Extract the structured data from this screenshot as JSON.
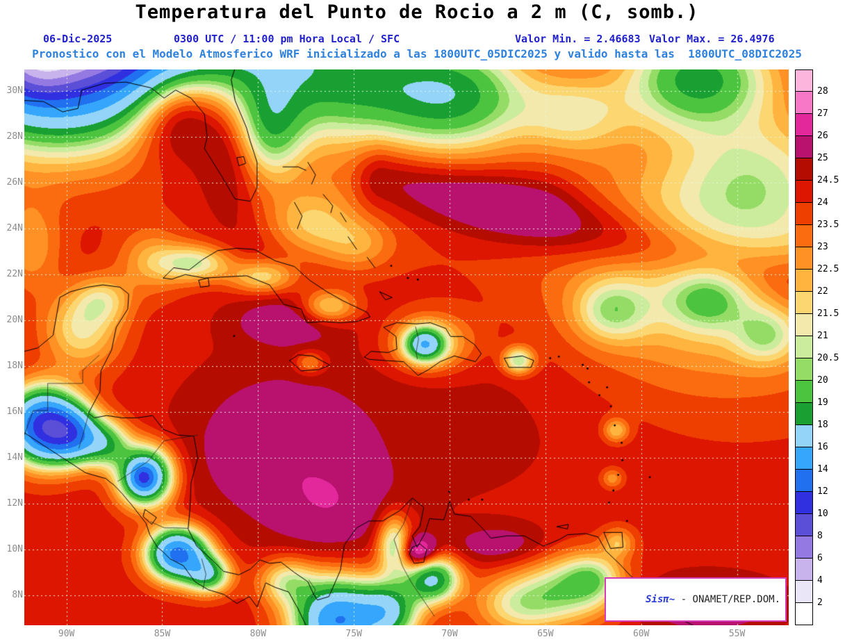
{
  "header": {
    "title": "Temperatura del Punto de Rocio a 2 m (C, somb.)",
    "date": "06-Dic-2025",
    "time_line": "0300 UTC / 11:00 pm Hora Local / SFC",
    "min_label": "Valor Min. = 2.46683",
    "max_label": "Valor Max. = 26.4976",
    "model_line": "Pronostico con el Modelo Atmosferico WRF inicializado a las 1800UTC_05DIC2025 y valido hasta las  1800UTC_08DIC2025"
  },
  "watermark": {
    "brand": "Sisπ~ ",
    "org": "- ONAMET/REP.DOM."
  },
  "axes": {
    "lat": [
      {
        "label": "30N",
        "value": 30
      },
      {
        "label": "28N",
        "value": 28
      },
      {
        "label": "26N",
        "value": 26
      },
      {
        "label": "24N",
        "value": 24
      },
      {
        "label": "22N",
        "value": 22
      },
      {
        "label": "20N",
        "value": 20
      },
      {
        "label": "18N",
        "value": 18
      },
      {
        "label": "16N",
        "value": 16
      },
      {
        "label": "14N",
        "value": 14
      },
      {
        "label": "12N",
        "value": 12
      },
      {
        "label": "10N",
        "value": 10
      },
      {
        "label": "8N",
        "value": 8
      }
    ],
    "lon": [
      {
        "label": "90W",
        "value": -90
      },
      {
        "label": "85W",
        "value": -85
      },
      {
        "label": "80W",
        "value": -80
      },
      {
        "label": "75W",
        "value": -75
      },
      {
        "label": "70W",
        "value": -70
      },
      {
        "label": "65W",
        "value": -65
      },
      {
        "label": "60W",
        "value": -60
      },
      {
        "label": "55W",
        "value": -55
      }
    ]
  },
  "colorbar": {
    "labels_top_to_bottom": [
      "28",
      "27",
      "26",
      "25",
      "24.5",
      "24",
      "23.5",
      "23",
      "22.5",
      "22",
      "21.5",
      "21",
      "20.5",
      "20",
      "19",
      "18",
      "16",
      "14",
      "12",
      "10",
      "8",
      "6",
      "4",
      "2"
    ]
  },
  "chart_data": {
    "type": "heatmap",
    "title": "Temperatura del Punto de Rocio a 2 m (C, somb.)",
    "units": "C",
    "value_min": 2.46683,
    "value_max": 26.4976,
    "extent": {
      "lon_min": -92.2,
      "lon_max": -52.3,
      "lat_min": 6.7,
      "lat_max": 30.95
    },
    "levels": [
      2,
      4,
      6,
      8,
      10,
      12,
      14,
      16,
      18,
      19,
      20,
      20.5,
      21,
      21.5,
      22,
      22.5,
      23,
      23.5,
      24,
      24.5,
      25,
      26,
      27,
      28
    ],
    "palette": [
      "#ffffff",
      "#eae6f8",
      "#c9b3ec",
      "#9579e2",
      "#5b4fd8",
      "#3030e0",
      "#2070f0",
      "#35a6fb",
      "#93d4f8",
      "#1aa032",
      "#4dc43f",
      "#95dc66",
      "#cbec9c",
      "#f3e9ac",
      "#fbd671",
      "#ffb440",
      "#ff9125",
      "#fb6c10",
      "#ee3e00",
      "#dc1600",
      "#b50c00",
      "#b8126e",
      "#e3289b",
      "#f878c8",
      "#fcb6dd"
    ],
    "base_value": 24.2,
    "features": [
      [
        -90.5,
        33.2,
        -24,
        4.0,
        2.9
      ],
      [
        -91.5,
        31.0,
        -2.5,
        1.2,
        0.9
      ],
      [
        -82.5,
        35.5,
        -15,
        4.5,
        2.8
      ],
      [
        -75.3,
        30.3,
        -4.8,
        3.8,
        1.7
      ],
      [
        -69.5,
        29.8,
        -4.5,
        2.6,
        1.6
      ],
      [
        -57.0,
        30.6,
        -5.5,
        2.6,
        1.5
      ],
      [
        -63.5,
        29.0,
        -2.5,
        2.0,
        1.2
      ],
      [
        -84.3,
        29.3,
        3.5,
        1.7,
        1.5
      ],
      [
        -81.6,
        27.3,
        1.2,
        1.1,
        1.9
      ],
      [
        -79.3,
        28.3,
        -3.5,
        1.2,
        1.5
      ],
      [
        -77.3,
        24.2,
        -2.2,
        1.6,
        1.0
      ],
      [
        -74.8,
        23.3,
        -1.5,
        1.3,
        0.8
      ],
      [
        -56.0,
        22.5,
        -3.3,
        5.5,
        3.4
      ],
      [
        -61.5,
        20.4,
        -2.6,
        1.3,
        0.9
      ],
      [
        -56.5,
        20.9,
        -2.4,
        1.4,
        0.9
      ],
      [
        -53.5,
        19.3,
        -2.2,
        1.1,
        0.8
      ],
      [
        -54.0,
        26.5,
        -2.0,
        3.0,
        1.8
      ],
      [
        -72.0,
        15.8,
        0.6,
        7.0,
        3.2
      ],
      [
        -79.5,
        14.3,
        1.2,
        3.0,
        2.3
      ],
      [
        -76.0,
        11.8,
        1.2,
        2.2,
        1.5
      ],
      [
        -78.5,
        20.0,
        1.3,
        2.0,
        0.75
      ],
      [
        -91.2,
        15.4,
        -13,
        1.25,
        1.05
      ],
      [
        -89.6,
        15.0,
        -7,
        0.95,
        0.8
      ],
      [
        -87.9,
        14.6,
        -4.5,
        0.85,
        0.7
      ],
      [
        -85.9,
        13.2,
        -9.5,
        0.95,
        0.85
      ],
      [
        -86.0,
        13.1,
        -4,
        0.45,
        0.4
      ],
      [
        -84.2,
        9.8,
        -11,
        1.05,
        0.75
      ],
      [
        -82.6,
        8.9,
        -5.5,
        0.8,
        0.55
      ],
      [
        -78.5,
        8.6,
        -3.0,
        1.0,
        0.7
      ],
      [
        -75.9,
        6.9,
        -10,
        1.5,
        1.2
      ],
      [
        -73.2,
        7.3,
        -6,
        1.1,
        0.9
      ],
      [
        -70.9,
        8.7,
        -6.5,
        0.95,
        0.7
      ],
      [
        -72.9,
        10.2,
        -4,
        0.6,
        0.9
      ],
      [
        -71.6,
        9.85,
        3.5,
        0.65,
        0.5
      ],
      [
        -89.2,
        19.6,
        -2.8,
        1.4,
        1.2
      ],
      [
        -88.1,
        20.9,
        -2.0,
        1.0,
        0.7
      ],
      [
        -85.6,
        22.6,
        -1.7,
        1.2,
        1.0
      ],
      [
        -91.9,
        23.3,
        -1.6,
        1.1,
        1.4
      ],
      [
        -83.3,
        22.5,
        -3.2,
        1.3,
        0.55
      ],
      [
        -79.8,
        21.9,
        -2.6,
        1.2,
        0.5
      ],
      [
        -76.3,
        20.6,
        -2.8,
        1.0,
        0.5
      ],
      [
        -71.3,
        18.95,
        -6.5,
        0.7,
        0.5
      ],
      [
        -71.0,
        19.0,
        -2.5,
        1.6,
        0.9
      ],
      [
        -66.4,
        18.25,
        -3.8,
        0.55,
        0.4
      ],
      [
        -77.3,
        18.15,
        -1.8,
        0.55,
        0.35
      ],
      [
        -63.5,
        8.3,
        -3.5,
        1.7,
        1.0
      ],
      [
        -66.3,
        7.6,
        -3.0,
        1.6,
        0.9
      ],
      [
        -56.5,
        7.6,
        1.6,
        2.6,
        0.9
      ],
      [
        -67.5,
        10.2,
        1.2,
        1.8,
        0.6
      ],
      [
        -61.3,
        15.2,
        -2.2,
        0.45,
        0.35
      ],
      [
        -61.5,
        13.1,
        -1.6,
        0.4,
        0.3
      ],
      [
        -61.2,
        10.3,
        -2.0,
        0.6,
        0.45
      ],
      [
        -62.5,
        8.8,
        -2.0,
        1.0,
        0.7
      ],
      [
        -73.0,
        25.5,
        -1.2,
        4.0,
        2.0
      ]
    ],
    "ridges": [
      [
        -73.5,
        26.3,
        -52.5,
        21.8,
        2.0,
        1.05
      ],
      [
        -80.0,
        23.5,
        -65.0,
        25.3,
        0.5,
        1.3
      ]
    ]
  }
}
